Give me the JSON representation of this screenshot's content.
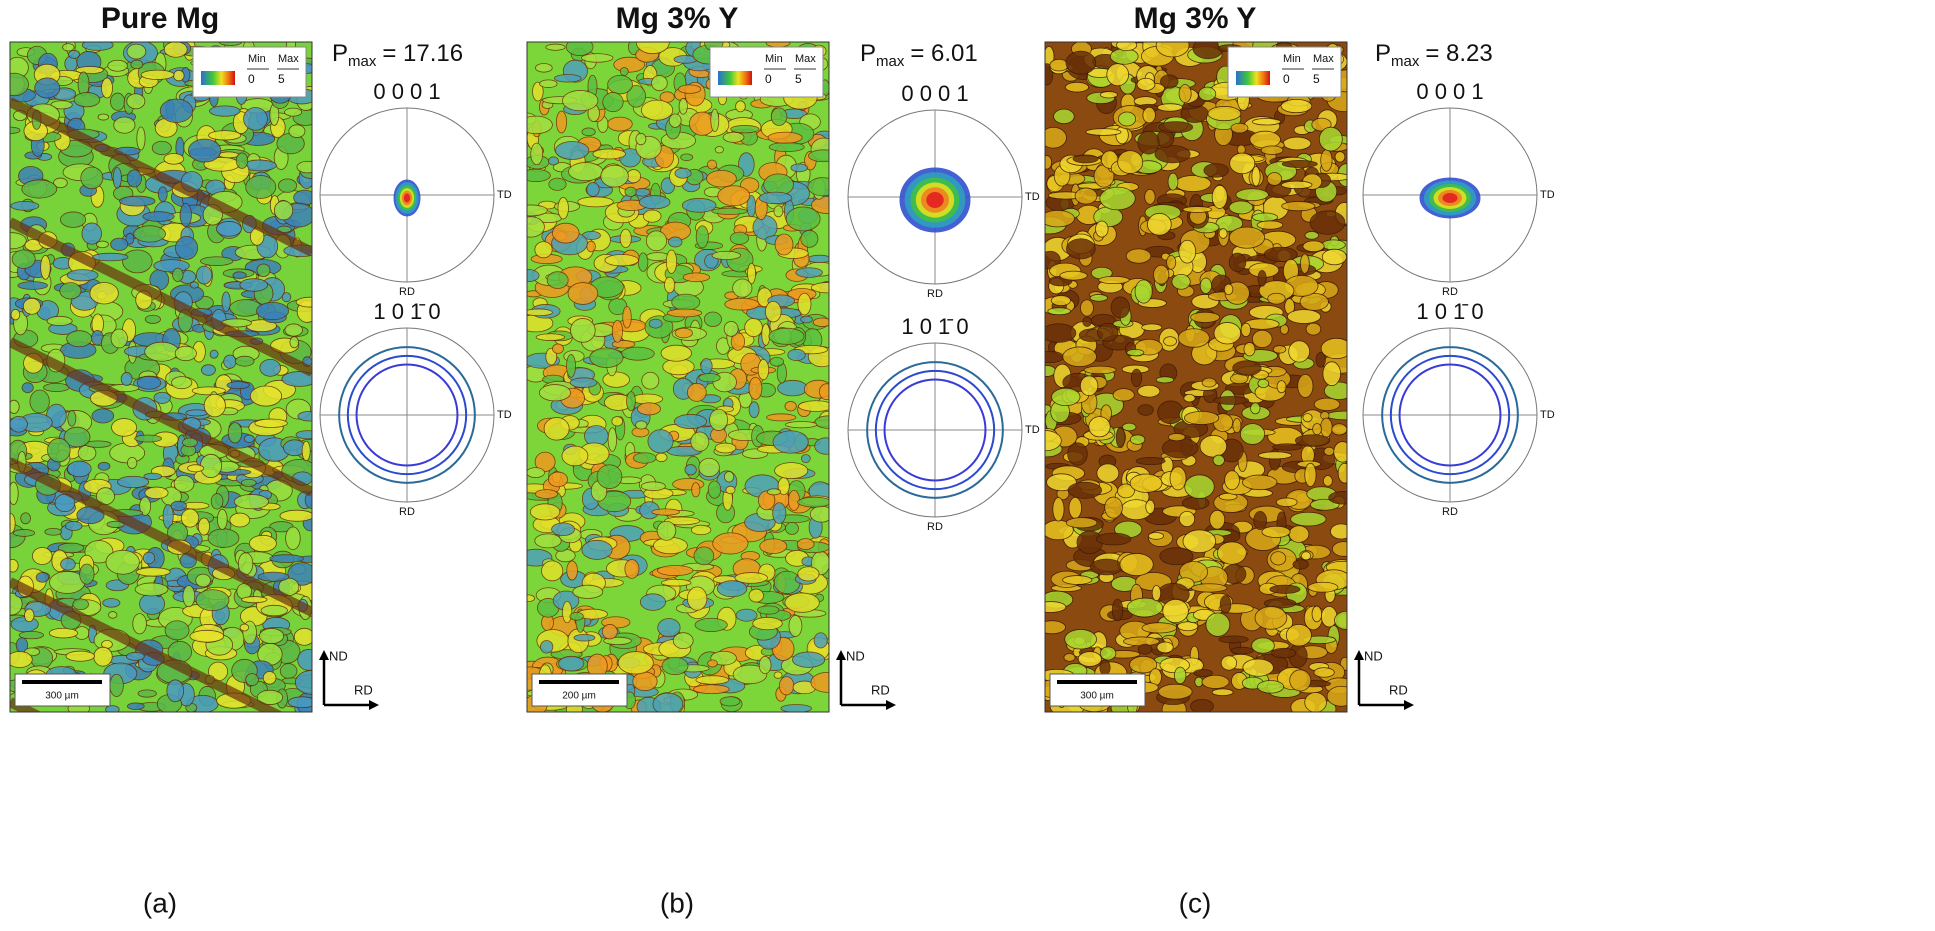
{
  "panels": [
    {
      "title": "Pure Mg",
      "pmax": {
        "symbol": "P",
        "subscript": "max",
        "text": "= 17.16"
      },
      "legend": {
        "min_label": "Min",
        "max_label": "Max",
        "min": "0",
        "max": "5"
      },
      "pole_figure_basal": {
        "label": "0 0 0 1",
        "td": "TD",
        "rd": "RD"
      },
      "pole_figure_prismatic": {
        "label": "1 0 1̄ 0",
        "td": "TD",
        "rd": "RD"
      },
      "scale_bar": "300 µm",
      "axes": {
        "nd": "ND",
        "rd": "RD"
      },
      "caption": "(a)"
    },
    {
      "title": "Mg 3% Y",
      "pmax": {
        "symbol": "P",
        "subscript": "max",
        "text": "= 6.01"
      },
      "legend": {
        "min_label": "Min",
        "max_label": "Max",
        "min": "0",
        "max": "5"
      },
      "pole_figure_basal": {
        "label": "0 0 0 1",
        "td": "TD",
        "rd": "RD"
      },
      "pole_figure_prismatic": {
        "label": "1 0 1̄ 0",
        "td": "TD",
        "rd": "RD"
      },
      "scale_bar": "200 µm",
      "axes": {
        "nd": "ND",
        "rd": "RD"
      },
      "caption": "(b)"
    },
    {
      "title": "Mg 3% Y",
      "pmax": {
        "symbol": "P",
        "subscript": "max",
        "text": "= 8.23"
      },
      "legend": {
        "min_label": "Min",
        "max_label": "Max",
        "min": "0",
        "max": "5"
      },
      "pole_figure_basal": {
        "label": "0 0 0 1",
        "td": "TD",
        "rd": "RD"
      },
      "pole_figure_prismatic": {
        "label": "1 0 1̄ 0",
        "td": "TD",
        "rd": "RD"
      },
      "scale_bar": "300 µm",
      "axes": {
        "nd": "ND",
        "rd": "RD"
      },
      "caption": "(c)"
    }
  ]
}
